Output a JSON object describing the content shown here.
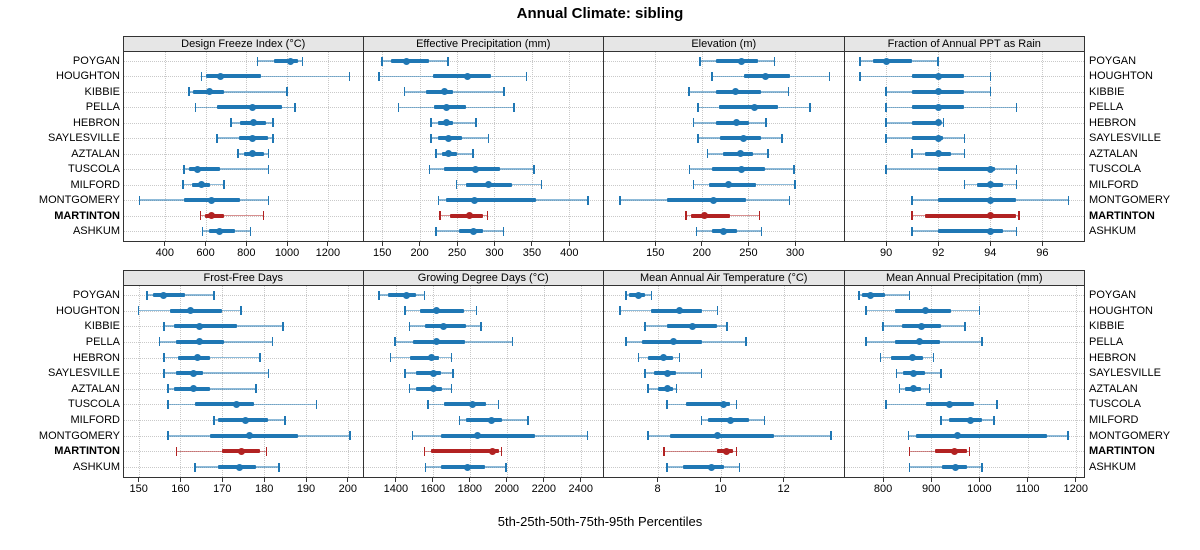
{
  "title": "Annual Climate: sibling",
  "footer": "5th-25th-50th-75th-95th Percentiles",
  "colors": {
    "series_blue": "#1F77B4",
    "highlight_red": "#B22222",
    "strip_bg": "#E6E6E6",
    "panel_border": "#333333",
    "grid": "#C8C8C8",
    "tick": "#333333",
    "text": "#000000"
  },
  "sites": [
    "POYGAN",
    "HOUGHTON",
    "KIBBIE",
    "PELLA",
    "HEBRON",
    "SAYLESVILLE",
    "AZTALAN",
    "TUSCOLA",
    "MILFORD",
    "MONTGOMERY",
    "MARTINTON",
    "ASHKUM"
  ],
  "highlight_site": "MARTINTON",
  "percentile_labels": [
    "5th",
    "25th",
    "50th",
    "75th",
    "95th"
  ],
  "chart_data": {
    "type": "trellis-percentile-dotplot",
    "layout": "4x2 grid, site labels on both sides, x-axis free per panel, dotted grid",
    "panels": [
      {
        "label": "Design Freeze Index (°C)",
        "xdomain": [
          200,
          1370
        ],
        "ticks": [
          400,
          600,
          800,
          1000,
          1200
        ],
        "series": [
          [
            855,
            935,
            1015,
            1055,
            1075
          ],
          [
            580,
            600,
            675,
            870,
            1305
          ],
          [
            520,
            540,
            620,
            690,
            1000
          ],
          [
            550,
            655,
            830,
            975,
            1040
          ],
          [
            725,
            770,
            835,
            895,
            930
          ],
          [
            655,
            765,
            830,
            905,
            930
          ],
          [
            760,
            790,
            830,
            885,
            910
          ],
          [
            495,
            520,
            560,
            670,
            910
          ],
          [
            490,
            535,
            580,
            620,
            690
          ],
          [
            275,
            495,
            630,
            770,
            910
          ],
          [
            575,
            595,
            630,
            690,
            885
          ],
          [
            585,
            615,
            670,
            745,
            820
          ]
        ]
      },
      {
        "label": "Effective Precipitation (mm)",
        "xdomain": [
          125,
          445
        ],
        "ticks": [
          150,
          200,
          250,
          300,
          350,
          400
        ],
        "series": [
          [
            150,
            162,
            183,
            212,
            238
          ],
          [
            146,
            218,
            264,
            295,
            343
          ],
          [
            180,
            208,
            233,
            244,
            313
          ],
          [
            172,
            219,
            236,
            262,
            326
          ],
          [
            215,
            225,
            236,
            244,
            275
          ],
          [
            215,
            224,
            238,
            256,
            292
          ],
          [
            222,
            230,
            239,
            250,
            271
          ],
          [
            213,
            233,
            274,
            308,
            353
          ],
          [
            249,
            262,
            292,
            323,
            363
          ],
          [
            225,
            235,
            273,
            356,
            425
          ],
          [
            227,
            240,
            267,
            285,
            291
          ],
          [
            222,
            252,
            272,
            285,
            312
          ]
        ]
      },
      {
        "label": "Elevation (m)",
        "xdomain": [
          95,
          352
        ],
        "ticks": [
          150,
          200,
          250,
          300
        ],
        "series": [
          [
            198,
            215,
            243,
            260,
            278
          ],
          [
            211,
            245,
            268,
            295,
            337
          ],
          [
            186,
            215,
            236,
            263,
            293
          ],
          [
            196,
            218,
            257,
            282,
            316
          ],
          [
            191,
            215,
            237,
            251,
            269
          ],
          [
            196,
            220,
            245,
            263,
            286
          ],
          [
            206,
            223,
            242,
            255,
            271
          ],
          [
            187,
            211,
            243,
            268,
            299
          ],
          [
            191,
            208,
            229,
            258,
            300
          ],
          [
            112,
            163,
            212,
            247,
            294
          ],
          [
            183,
            188,
            203,
            230,
            262
          ],
          [
            194,
            211,
            223,
            238,
            264
          ]
        ]
      },
      {
        "label": "Fraction of Annual PPT as Rain",
        "xdomain": [
          88.4,
          97.6
        ],
        "ticks": [
          90,
          92,
          94,
          96
        ],
        "series": [
          [
            89,
            89.5,
            90,
            91,
            92
          ],
          [
            89,
            91,
            92,
            93,
            94
          ],
          [
            90,
            91,
            92,
            93,
            94
          ],
          [
            90,
            91,
            92,
            93,
            95
          ],
          [
            90,
            91,
            92,
            92,
            92.2
          ],
          [
            90,
            91,
            92,
            92.2,
            93
          ],
          [
            91,
            91.5,
            92,
            92.5,
            93
          ],
          [
            90,
            92,
            94,
            94.2,
            95
          ],
          [
            93,
            93.5,
            94,
            94.5,
            95
          ],
          [
            91,
            92,
            94,
            95,
            97
          ],
          [
            91,
            91.5,
            94,
            95,
            95.1
          ],
          [
            91,
            92,
            94,
            94.5,
            95
          ]
        ]
      },
      {
        "label": "Frost-Free Days",
        "xdomain": [
          146.5,
          203.5
        ],
        "ticks": [
          150,
          160,
          170,
          180,
          190,
          200
        ],
        "series": [
          [
            152,
            153.5,
            156,
            161,
            168
          ],
          [
            150,
            157.5,
            162.5,
            170,
            174.5
          ],
          [
            156,
            158.5,
            164.5,
            173.5,
            184.5
          ],
          [
            155,
            159,
            164.5,
            170.5,
            182
          ],
          [
            156,
            159.5,
            164,
            167,
            179
          ],
          [
            156,
            159,
            163,
            165.5,
            181
          ],
          [
            157,
            158.5,
            163,
            167,
            178
          ],
          [
            157,
            163.5,
            173.5,
            177.5,
            192.5
          ],
          [
            168,
            169,
            175.5,
            181,
            185
          ],
          [
            157,
            167,
            176.5,
            188,
            200.5
          ],
          [
            159,
            170,
            174.5,
            179,
            180.5
          ],
          [
            163.5,
            169,
            174,
            178,
            183.5
          ]
        ]
      },
      {
        "label": "Growing Degree Days (°C)",
        "xdomain": [
          1225,
          2520
        ],
        "ticks": [
          1400,
          1600,
          1800,
          2000,
          2200,
          2400
        ],
        "series": [
          [
            1310,
            1360,
            1460,
            1510,
            1555
          ],
          [
            1450,
            1530,
            1620,
            1770,
            1835
          ],
          [
            1475,
            1560,
            1660,
            1780,
            1860
          ],
          [
            1395,
            1495,
            1620,
            1775,
            2030
          ],
          [
            1370,
            1475,
            1590,
            1635,
            1700
          ],
          [
            1450,
            1510,
            1605,
            1645,
            1710
          ],
          [
            1475,
            1510,
            1605,
            1650,
            1700
          ],
          [
            1575,
            1660,
            1815,
            1890,
            1955
          ],
          [
            1745,
            1780,
            1915,
            1975,
            2115
          ],
          [
            1490,
            1645,
            1840,
            2150,
            2435
          ],
          [
            1555,
            1590,
            1920,
            1955,
            1970
          ],
          [
            1560,
            1645,
            1790,
            1880,
            1995
          ]
        ]
      },
      {
        "label": "Mean Annual Air Temperature (°C)",
        "xdomain": [
          6.3,
          13.9
        ],
        "ticks": [
          8,
          10,
          12
        ],
        "series": [
          [
            7.0,
            7.1,
            7.4,
            7.6,
            7.8
          ],
          [
            6.8,
            7.8,
            8.7,
            9.4,
            9.9
          ],
          [
            7.6,
            8.3,
            9.1,
            9.9,
            10.2
          ],
          [
            7.0,
            7.5,
            8.5,
            9.4,
            10.8
          ],
          [
            7.4,
            7.7,
            8.2,
            8.5,
            8.7
          ],
          [
            7.6,
            7.9,
            8.3,
            8.6,
            9.4
          ],
          [
            7.7,
            8.0,
            8.3,
            8.5,
            8.6
          ],
          [
            8.3,
            8.9,
            10.1,
            10.3,
            10.5
          ],
          [
            9.4,
            9.6,
            10.3,
            10.9,
            11.4
          ],
          [
            7.7,
            8.4,
            9.9,
            11.7,
            13.5
          ],
          [
            8.2,
            9.9,
            10.2,
            10.4,
            10.5
          ],
          [
            8.3,
            8.8,
            9.7,
            10.1,
            10.6
          ]
        ]
      },
      {
        "label": "Mean Annual Precipitation (mm)",
        "xdomain": [
          720,
          1217
        ],
        "ticks": [
          800,
          900,
          1000,
          1100,
          1200
        ],
        "series": [
          [
            750,
            756,
            773,
            805,
            855
          ],
          [
            765,
            825,
            888,
            940,
            1000
          ],
          [
            800,
            840,
            880,
            920,
            970
          ],
          [
            765,
            825,
            876,
            918,
            1005
          ],
          [
            795,
            816,
            861,
            882,
            905
          ],
          [
            828,
            841,
            864,
            888,
            920
          ],
          [
            834,
            845,
            864,
            879,
            896
          ],
          [
            806,
            890,
            938,
            988,
            1036
          ],
          [
            920,
            936,
            981,
            1006,
            1030
          ],
          [
            853,
            869,
            955,
            1140,
            1184
          ],
          [
            855,
            908,
            949,
            974,
            979
          ],
          [
            855,
            923,
            950,
            975,
            1005
          ]
        ]
      }
    ]
  }
}
